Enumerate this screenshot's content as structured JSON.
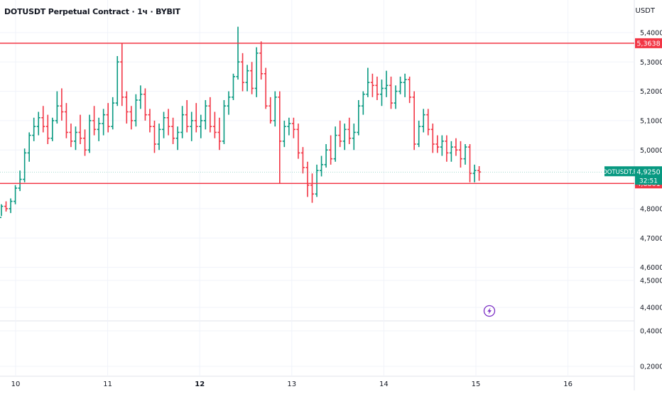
{
  "header": {
    "title": "DOTUSDT Perpetual Contract · 1ч · BYBIT",
    "currency": "USDT"
  },
  "chart_data": {
    "type": "ohlc",
    "upper_pane": {
      "ylim": [
        4.645,
        5.424
      ],
      "y_ticks": [
        {
          "label": "5,4000",
          "value": 5.4
        },
        {
          "label": "5,3000",
          "value": 5.3
        },
        {
          "label": "5,2000",
          "value": 5.2
        },
        {
          "label": "5,1000",
          "value": 5.1
        },
        {
          "label": "5,0000",
          "value": 5.0
        },
        {
          "label": "4,8000",
          "value": 4.8
        },
        {
          "label": "4,7000",
          "value": 4.7
        },
        {
          "label": "4,6000",
          "value": 4.6
        }
      ]
    },
    "lower_pane": {
      "y_ticks": [
        {
          "label": "4,5000",
          "value": 4.5
        },
        {
          "label": "4,4000",
          "value": 4.4
        },
        {
          "label": "0,4000",
          "value": 0.4
        },
        {
          "label": "0,2000",
          "value": 0.2
        }
      ]
    },
    "x_ticks": [
      {
        "label": "10",
        "day": 10,
        "bold": false
      },
      {
        "label": "11",
        "day": 11,
        "bold": false
      },
      {
        "label": "12",
        "day": 12,
        "bold": true
      },
      {
        "label": "13",
        "day": 13,
        "bold": false
      },
      {
        "label": "14",
        "day": 14,
        "bold": false
      },
      {
        "label": "15",
        "day": 15,
        "bold": false
      },
      {
        "label": "16",
        "day": 16,
        "bold": false
      }
    ],
    "horizontal_lines": [
      {
        "value": 5.3638,
        "label": "5,3638",
        "color": "#f23645"
      },
      {
        "value": 4.8861,
        "label": "4,8861",
        "color": "#f23645"
      }
    ],
    "last_price": {
      "symbol": "DOTUSDT.P",
      "value": 4.925,
      "label": "4,9250",
      "countdown": "32:51",
      "color": "#089981"
    },
    "colors": {
      "up": "#089981",
      "down": "#f23645",
      "grid": "#f0f3fa"
    },
    "candles": [
      [
        4.77,
        4.815,
        4.775,
        4.808
      ],
      [
        4.808,
        4.825,
        4.79,
        4.8
      ],
      [
        4.8,
        4.835,
        4.785,
        4.825
      ],
      [
        4.825,
        4.88,
        4.815,
        4.87
      ],
      [
        4.87,
        4.93,
        4.86,
        4.9
      ],
      [
        4.9,
        5.005,
        4.89,
        4.99
      ],
      [
        4.99,
        5.06,
        4.96,
        5.05
      ],
      [
        5.05,
        5.11,
        5.03,
        5.08
      ],
      [
        5.08,
        5.13,
        5.05,
        5.11
      ],
      [
        5.11,
        5.15,
        5.06,
        5.08
      ],
      [
        5.08,
        5.12,
        5.02,
        5.04
      ],
      [
        5.04,
        5.11,
        5.03,
        5.1
      ],
      [
        5.1,
        5.2,
        5.09,
        5.15
      ],
      [
        5.15,
        5.21,
        5.1,
        5.13
      ],
      [
        5.13,
        5.16,
        5.04,
        5.06
      ],
      [
        5.06,
        5.09,
        5.01,
        5.03
      ],
      [
        5.03,
        5.08,
        5.0,
        5.06
      ],
      [
        5.06,
        5.12,
        5.02,
        5.04
      ],
      [
        5.04,
        5.07,
        4.98,
        5.0
      ],
      [
        5.0,
        5.12,
        4.99,
        5.1
      ],
      [
        5.1,
        5.15,
        5.05,
        5.07
      ],
      [
        5.07,
        5.11,
        5.03,
        5.09
      ],
      [
        5.09,
        5.14,
        5.05,
        5.12
      ],
      [
        5.12,
        5.16,
        5.06,
        5.08
      ],
      [
        5.08,
        5.18,
        5.07,
        5.16
      ],
      [
        5.16,
        5.32,
        5.15,
        5.3
      ],
      [
        5.3,
        5.364,
        5.15,
        5.18
      ],
      [
        5.18,
        5.2,
        5.09,
        5.13
      ],
      [
        5.13,
        5.15,
        5.07,
        5.1
      ],
      [
        5.1,
        5.19,
        5.08,
        5.17
      ],
      [
        5.17,
        5.22,
        5.14,
        5.19
      ],
      [
        5.19,
        5.21,
        5.1,
        5.12
      ],
      [
        5.12,
        5.14,
        5.06,
        5.08
      ],
      [
        5.08,
        5.1,
        4.99,
        5.02
      ],
      [
        5.02,
        5.09,
        5.0,
        5.07
      ],
      [
        5.07,
        5.13,
        5.04,
        5.11
      ],
      [
        5.11,
        5.14,
        5.05,
        5.08
      ],
      [
        5.08,
        5.11,
        5.02,
        5.04
      ],
      [
        5.04,
        5.08,
        5.0,
        5.06
      ],
      [
        5.06,
        5.15,
        5.04,
        5.12
      ],
      [
        5.12,
        5.17,
        5.06,
        5.08
      ],
      [
        5.08,
        5.13,
        5.03,
        5.1
      ],
      [
        5.1,
        5.16,
        5.06,
        5.08
      ],
      [
        5.08,
        5.12,
        5.04,
        5.1
      ],
      [
        5.1,
        5.17,
        5.07,
        5.15
      ],
      [
        5.15,
        5.18,
        5.06,
        5.08
      ],
      [
        5.08,
        5.13,
        5.04,
        5.06
      ],
      [
        5.06,
        5.11,
        5.0,
        5.03
      ],
      [
        5.03,
        5.17,
        5.02,
        5.15
      ],
      [
        5.15,
        5.2,
        5.12,
        5.18
      ],
      [
        5.18,
        5.26,
        5.17,
        5.25
      ],
      [
        5.25,
        5.42,
        5.24,
        5.3
      ],
      [
        5.3,
        5.33,
        5.2,
        5.23
      ],
      [
        5.23,
        5.29,
        5.2,
        5.27
      ],
      [
        5.27,
        5.3,
        5.19,
        5.21
      ],
      [
        5.21,
        5.35,
        5.18,
        5.33
      ],
      [
        5.33,
        5.37,
        5.24,
        5.26
      ],
      [
        5.26,
        5.28,
        5.14,
        5.15
      ],
      [
        5.15,
        5.18,
        5.09,
        5.1
      ],
      [
        5.1,
        5.2,
        5.08,
        5.18
      ],
      [
        5.18,
        5.2,
        4.886,
        5.03
      ],
      [
        5.03,
        5.1,
        5.01,
        5.08
      ],
      [
        5.08,
        5.11,
        5.05,
        5.09
      ],
      [
        5.09,
        5.11,
        5.04,
        5.07
      ],
      [
        5.07,
        5.09,
        4.97,
        4.99
      ],
      [
        4.99,
        5.01,
        4.92,
        4.94
      ],
      [
        4.94,
        4.96,
        4.84,
        4.88
      ],
      [
        4.88,
        4.92,
        4.82,
        4.85
      ],
      [
        4.85,
        4.95,
        4.84,
        4.93
      ],
      [
        4.93,
        4.98,
        4.91,
        4.95
      ],
      [
        4.95,
        5.02,
        4.94,
        5.0
      ],
      [
        5.0,
        5.05,
        4.95,
        4.97
      ],
      [
        4.97,
        5.08,
        4.96,
        5.05
      ],
      [
        5.05,
        5.1,
        5.01,
        5.03
      ],
      [
        5.03,
        5.09,
        5.0,
        5.07
      ],
      [
        5.07,
        5.11,
        5.02,
        5.04
      ],
      [
        5.04,
        5.09,
        5.0,
        5.06
      ],
      [
        5.06,
        5.17,
        5.05,
        5.15
      ],
      [
        5.15,
        5.2,
        5.12,
        5.19
      ],
      [
        5.19,
        5.28,
        5.18,
        5.23
      ],
      [
        5.23,
        5.26,
        5.18,
        5.22
      ],
      [
        5.22,
        5.25,
        5.17,
        5.19
      ],
      [
        5.19,
        5.24,
        5.15,
        5.21
      ],
      [
        5.21,
        5.27,
        5.18,
        5.22
      ],
      [
        5.22,
        5.25,
        5.14,
        5.16
      ],
      [
        5.16,
        5.22,
        5.14,
        5.2
      ],
      [
        5.2,
        5.25,
        5.19,
        5.23
      ],
      [
        5.23,
        5.26,
        5.18,
        5.24
      ],
      [
        5.24,
        5.25,
        5.16,
        5.18
      ],
      [
        5.18,
        5.2,
        5.0,
        5.02
      ],
      [
        5.02,
        5.1,
        5.01,
        5.08
      ],
      [
        5.08,
        5.14,
        5.06,
        5.12
      ],
      [
        5.12,
        5.14,
        5.05,
        5.07
      ],
      [
        5.07,
        5.09,
        4.99,
        5.02
      ],
      [
        5.02,
        5.05,
        4.99,
        5.01
      ],
      [
        5.01,
        5.05,
        4.98,
        5.03
      ],
      [
        5.03,
        5.05,
        4.96,
        4.99
      ],
      [
        4.99,
        5.03,
        4.96,
        5.01
      ],
      [
        5.01,
        5.04,
        4.98,
        5.0
      ],
      [
        5.0,
        5.03,
        4.94,
        4.97
      ],
      [
        4.97,
        5.02,
        4.95,
        5.01
      ],
      [
        5.01,
        5.02,
        4.89,
        4.92
      ],
      [
        4.92,
        4.95,
        4.89,
        4.93
      ],
      [
        4.93,
        4.945,
        4.895,
        4.925
      ]
    ]
  }
}
